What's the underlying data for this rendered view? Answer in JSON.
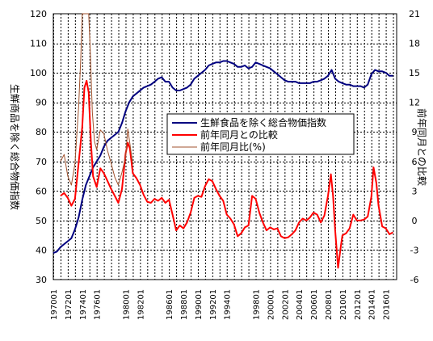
{
  "chart_data": {
    "type": "line",
    "grid": true,
    "legend_position": "center-right",
    "y_left": {
      "label": "生鮮商品を除く総合物価指数",
      "range": [
        30,
        120
      ],
      "ticks": [
        30,
        40,
        50,
        60,
        70,
        80,
        90,
        100,
        110,
        120
      ]
    },
    "y_right": {
      "label": "前年同月との比較",
      "range": [
        -6,
        21
      ],
      "ticks": [
        -6,
        -3,
        0,
        3,
        6,
        9,
        12,
        15,
        18,
        21
      ]
    },
    "x": {
      "range": [
        1970,
        2017.5
      ],
      "ticks": [
        {
          "label": "197001",
          "x": 1970.0
        },
        {
          "label": "197201",
          "x": 1972.0
        },
        {
          "label": "197401",
          "x": 1974.0
        },
        {
          "label": "197601",
          "x": 1976.0
        },
        {
          "label": "198001",
          "x": 1980.0
        },
        {
          "label": "198201",
          "x": 1982.0
        },
        {
          "label": "198601",
          "x": 1986.0
        },
        {
          "label": "198801",
          "x": 1988.0
        },
        {
          "label": "199001",
          "x": 1990.0
        },
        {
          "label": "199201",
          "x": 1992.0
        },
        {
          "label": "199401",
          "x": 1994.0
        },
        {
          "label": "199801",
          "x": 1998.0
        },
        {
          "label": "200001",
          "x": 2000.0
        },
        {
          "label": "200201",
          "x": 2002.0
        },
        {
          "label": "200401",
          "x": 2004.0
        },
        {
          "label": "200601",
          "x": 2006.0
        },
        {
          "label": "200801",
          "x": 2008.0
        },
        {
          "label": "201001",
          "x": 2010.0
        },
        {
          "label": "201201",
          "x": 2012.0
        },
        {
          "label": "201401",
          "x": 2014.0
        },
        {
          "label": "201601",
          "x": 2016.0
        }
      ]
    },
    "series": [
      {
        "name": "生鮮食品を除く総合物価指数",
        "axis": "left",
        "color": "#000080",
        "points": [
          [
            1970.0,
            39
          ],
          [
            1970.5,
            39.5
          ],
          [
            1971.0,
            41
          ],
          [
            1971.5,
            42
          ],
          [
            1972.0,
            43
          ],
          [
            1972.5,
            44
          ],
          [
            1973.0,
            47
          ],
          [
            1973.5,
            51
          ],
          [
            1974.0,
            57
          ],
          [
            1974.5,
            62
          ],
          [
            1975.0,
            65
          ],
          [
            1975.5,
            68
          ],
          [
            1976.0,
            70
          ],
          [
            1976.5,
            72
          ],
          [
            1977.0,
            75
          ],
          [
            1977.5,
            77
          ],
          [
            1978.0,
            78
          ],
          [
            1978.5,
            79
          ],
          [
            1979.0,
            80
          ],
          [
            1979.5,
            83
          ],
          [
            1980.0,
            87
          ],
          [
            1980.5,
            90
          ],
          [
            1981.0,
            92
          ],
          [
            1981.5,
            93
          ],
          [
            1982.0,
            94
          ],
          [
            1982.5,
            95
          ],
          [
            1983.0,
            95.5
          ],
          [
            1983.5,
            96
          ],
          [
            1984.0,
            97
          ],
          [
            1984.5,
            98
          ],
          [
            1985.0,
            98.5
          ],
          [
            1985.5,
            97
          ],
          [
            1986.0,
            97
          ],
          [
            1986.5,
            95
          ],
          [
            1987.0,
            94
          ],
          [
            1987.5,
            94
          ],
          [
            1988.0,
            94.5
          ],
          [
            1988.5,
            95
          ],
          [
            1989.0,
            96
          ],
          [
            1989.5,
            98
          ],
          [
            1990.0,
            99
          ],
          [
            1990.5,
            100
          ],
          [
            1991.0,
            101
          ],
          [
            1991.5,
            102.5
          ],
          [
            1992.0,
            103
          ],
          [
            1992.5,
            103.5
          ],
          [
            1993.0,
            103.5
          ],
          [
            1993.5,
            104
          ],
          [
            1994.0,
            104
          ],
          [
            1994.5,
            103.5
          ],
          [
            1995.0,
            103
          ],
          [
            1995.5,
            102
          ],
          [
            1996.0,
            102
          ],
          [
            1996.5,
            102.5
          ],
          [
            1997.0,
            101.5
          ],
          [
            1997.5,
            102
          ],
          [
            1998.0,
            103.5
          ],
          [
            1998.5,
            103
          ],
          [
            1999.0,
            102.5
          ],
          [
            1999.5,
            102
          ],
          [
            2000.0,
            101.5
          ],
          [
            2000.5,
            100.5
          ],
          [
            2001.0,
            99.5
          ],
          [
            2001.5,
            98.5
          ],
          [
            2002.0,
            97.5
          ],
          [
            2002.5,
            97
          ],
          [
            2003.0,
            97
          ],
          [
            2003.5,
            97
          ],
          [
            2004.0,
            96.5
          ],
          [
            2004.5,
            96.5
          ],
          [
            2005.0,
            96.5
          ],
          [
            2005.5,
            96.5
          ],
          [
            2006.0,
            97
          ],
          [
            2006.5,
            97
          ],
          [
            2007.0,
            97.5
          ],
          [
            2007.5,
            98
          ],
          [
            2008.0,
            99
          ],
          [
            2008.5,
            101
          ],
          [
            2009.0,
            98
          ],
          [
            2009.5,
            97
          ],
          [
            2010.0,
            96.5
          ],
          [
            2010.5,
            96
          ],
          [
            2011.0,
            96
          ],
          [
            2011.5,
            95.5
          ],
          [
            2012.0,
            95.5
          ],
          [
            2012.5,
            95.5
          ],
          [
            2013.0,
            95
          ],
          [
            2013.5,
            96
          ],
          [
            2014.0,
            99.5
          ],
          [
            2014.5,
            101
          ],
          [
            2015.0,
            100.5
          ],
          [
            2015.5,
            100.5
          ],
          [
            2016.0,
            100
          ],
          [
            2016.5,
            99
          ],
          [
            2017.0,
            99
          ]
        ]
      },
      {
        "name": "前年同月との比較",
        "axis": "right",
        "color": "#ff0000",
        "points": [
          [
            1971.0,
            2.5
          ],
          [
            1971.5,
            2.8
          ],
          [
            1972.0,
            2.3
          ],
          [
            1972.5,
            1.5
          ],
          [
            1973.0,
            2.2
          ],
          [
            1973.5,
            5.8
          ],
          [
            1974.0,
            9.5
          ],
          [
            1974.3,
            13.5
          ],
          [
            1974.6,
            14.2
          ],
          [
            1974.9,
            13.0
          ],
          [
            1975.2,
            8.0
          ],
          [
            1975.5,
            4.5
          ],
          [
            1976.0,
            3.4
          ],
          [
            1976.5,
            5.3
          ],
          [
            1977.0,
            4.8
          ],
          [
            1977.5,
            4.0
          ],
          [
            1978.0,
            3.2
          ],
          [
            1978.5,
            2.5
          ],
          [
            1979.0,
            1.8
          ],
          [
            1979.5,
            3.2
          ],
          [
            1980.0,
            6.8
          ],
          [
            1980.3,
            7.9
          ],
          [
            1980.6,
            7.3
          ],
          [
            1981.0,
            4.8
          ],
          [
            1981.5,
            4.3
          ],
          [
            1982.0,
            3.6
          ],
          [
            1982.5,
            2.6
          ],
          [
            1983.0,
            1.9
          ],
          [
            1983.5,
            1.8
          ],
          [
            1984.0,
            2.2
          ],
          [
            1984.5,
            2.0
          ],
          [
            1985.0,
            2.3
          ],
          [
            1985.5,
            1.8
          ],
          [
            1986.0,
            2.1
          ],
          [
            1986.5,
            0.6
          ],
          [
            1987.0,
            -1.0
          ],
          [
            1987.5,
            -0.5
          ],
          [
            1988.0,
            -0.8
          ],
          [
            1988.5,
            -0.2
          ],
          [
            1989.0,
            0.8
          ],
          [
            1989.5,
            2.3
          ],
          [
            1990.0,
            2.5
          ],
          [
            1990.5,
            2.4
          ],
          [
            1991.0,
            3.5
          ],
          [
            1991.5,
            4.2
          ],
          [
            1992.0,
            4.0
          ],
          [
            1992.5,
            3.2
          ],
          [
            1993.0,
            2.5
          ],
          [
            1993.5,
            2.0
          ],
          [
            1994.0,
            0.6
          ],
          [
            1994.5,
            0.2
          ],
          [
            1995.0,
            -0.4
          ],
          [
            1995.5,
            -1.6
          ],
          [
            1996.0,
            -1.3
          ],
          [
            1996.5,
            -0.7
          ],
          [
            1997.0,
            -0.5
          ],
          [
            1997.5,
            2.5
          ],
          [
            1998.0,
            2.2
          ],
          [
            1998.5,
            0.8
          ],
          [
            1999.0,
            -0.2
          ],
          [
            1999.5,
            -1.0
          ],
          [
            2000.0,
            -0.7
          ],
          [
            2000.5,
            -0.9
          ],
          [
            2001.0,
            -0.8
          ],
          [
            2001.5,
            -1.6
          ],
          [
            2002.0,
            -1.8
          ],
          [
            2002.5,
            -1.7
          ],
          [
            2003.0,
            -1.4
          ],
          [
            2003.5,
            -1.0
          ],
          [
            2004.0,
            -0.2
          ],
          [
            2004.5,
            0.2
          ],
          [
            2005.0,
            0.0
          ],
          [
            2005.5,
            0.3
          ],
          [
            2006.0,
            0.8
          ],
          [
            2006.5,
            0.6
          ],
          [
            2007.0,
            -0.2
          ],
          [
            2007.5,
            0.5
          ],
          [
            2008.0,
            2.5
          ],
          [
            2008.4,
            4.7
          ],
          [
            2008.7,
            2.5
          ],
          [
            2009.0,
            -1.0
          ],
          [
            2009.4,
            -4.8
          ],
          [
            2009.8,
            -2.5
          ],
          [
            2010.0,
            -1.5
          ],
          [
            2010.5,
            -1.3
          ],
          [
            2011.0,
            -0.8
          ],
          [
            2011.5,
            0.6
          ],
          [
            2012.0,
            0.0
          ],
          [
            2012.5,
            0.0
          ],
          [
            2013.0,
            0.1
          ],
          [
            2013.5,
            0.4
          ],
          [
            2014.0,
            2.4
          ],
          [
            2014.3,
            5.4
          ],
          [
            2014.7,
            3.8
          ],
          [
            2015.0,
            1.5
          ],
          [
            2015.5,
            -0.6
          ],
          [
            2016.0,
            -0.8
          ],
          [
            2016.5,
            -1.4
          ],
          [
            2017.0,
            -1.2
          ]
        ]
      },
      {
        "name": "前年同月比(%)",
        "axis": "right",
        "color": "#a0522d",
        "points": [
          [
            1971.0,
            6.0
          ],
          [
            1971.5,
            6.7
          ],
          [
            1972.0,
            4.5
          ],
          [
            1972.5,
            3.6
          ],
          [
            1973.0,
            5.8
          ],
          [
            1973.5,
            11.5
          ],
          [
            1973.8,
            16.5
          ],
          [
            1974.0,
            21
          ],
          [
            1974.3,
            21
          ],
          [
            1974.6,
            21
          ],
          [
            1974.9,
            21
          ],
          [
            1975.1,
            17.5
          ],
          [
            1975.4,
            11.0
          ],
          [
            1975.7,
            8.0
          ],
          [
            1976.0,
            7.2
          ],
          [
            1976.5,
            9.2
          ],
          [
            1977.0,
            8.8
          ],
          [
            1977.5,
            7.1
          ],
          [
            1978.0,
            5.8
          ],
          [
            1978.5,
            4.4
          ],
          [
            1979.0,
            3.6
          ],
          [
            1979.5,
            4.9
          ],
          [
            1980.0,
            6.5
          ],
          [
            1980.3,
            9.3
          ],
          [
            1980.6,
            7.8
          ],
          [
            1981.0,
            5.7
          ]
        ]
      }
    ]
  },
  "legend": {
    "items": [
      {
        "label": "生鮮食品を除く総合物価指数",
        "color": "#000080"
      },
      {
        "label": "前年同月との比較",
        "color": "#ff0000"
      },
      {
        "label": "前年同月比(%)",
        "color": "#a0522d"
      }
    ]
  }
}
